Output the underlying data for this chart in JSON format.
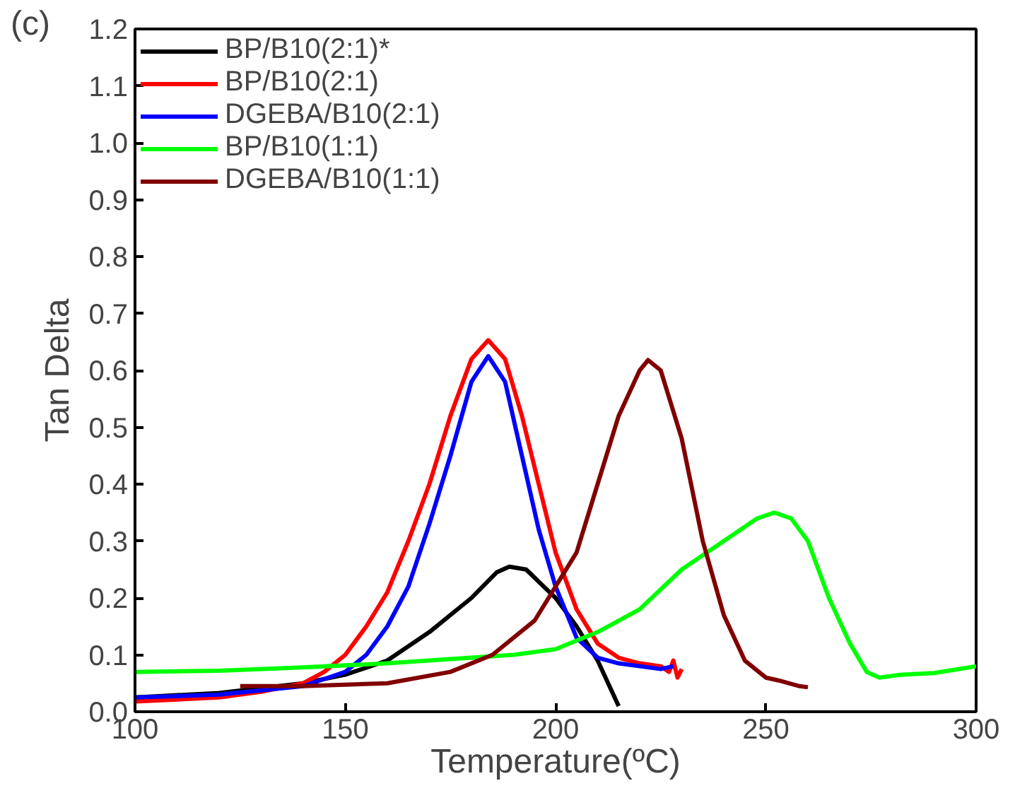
{
  "chart_data": {
    "type": "line",
    "xlabel": "Temperature(ºC)",
    "ylabel": "Tan Delta",
    "annotations": [
      "(c)"
    ],
    "xlim": [
      100,
      300
    ],
    "xticks": [
      100,
      150,
      200,
      250,
      300
    ],
    "ylim": [
      0,
      1.2
    ],
    "yticks": [
      {
        "value": 0,
        "label": "0.0"
      },
      0.1,
      0.2,
      0.3,
      0.4,
      0.5,
      0.6,
      0.7,
      0.8,
      0.9,
      {
        "value": 1,
        "label": "1.0"
      },
      1.1,
      1.2
    ],
    "grid": false,
    "legend": "top left",
    "line_style": "solid",
    "marker": "none",
    "series": [
      {
        "name": "BP/B10(2:1)*",
        "color": "#000000",
        "x": [
          100,
          120,
          140,
          150,
          160,
          170,
          180,
          186,
          189,
          193,
          200,
          205,
          210,
          215
        ],
        "values": [
          0.025,
          0.033,
          0.05,
          0.065,
          0.09,
          0.14,
          0.2,
          0.245,
          0.255,
          0.25,
          0.2,
          0.15,
          0.09,
          0.01
        ]
      },
      {
        "name": "BP/B10(2:1)",
        "color": "#ff0000",
        "x": [
          100,
          120,
          130,
          140,
          145,
          150,
          155,
          160,
          165,
          170,
          175,
          180,
          184,
          188,
          192,
          196,
          200,
          205,
          210,
          215,
          220,
          225,
          227,
          228,
          229,
          230
        ],
        "values": [
          0.018,
          0.025,
          0.035,
          0.05,
          0.07,
          0.1,
          0.15,
          0.21,
          0.3,
          0.4,
          0.52,
          0.62,
          0.653,
          0.62,
          0.52,
          0.4,
          0.28,
          0.18,
          0.12,
          0.095,
          0.085,
          0.08,
          0.07,
          0.09,
          0.06,
          0.075
        ]
      },
      {
        "name": "DGEBA/B10(2:1)",
        "color": "#0000ff",
        "x": [
          100,
          120,
          140,
          150,
          155,
          160,
          165,
          170,
          175,
          180,
          184,
          188,
          192,
          196,
          200,
          205,
          210,
          215,
          220,
          225,
          228
        ],
        "values": [
          0.025,
          0.03,
          0.045,
          0.07,
          0.1,
          0.15,
          0.22,
          0.33,
          0.45,
          0.58,
          0.625,
          0.58,
          0.45,
          0.32,
          0.22,
          0.13,
          0.095,
          0.085,
          0.08,
          0.075,
          0.08
        ]
      },
      {
        "name": "BP/B10(1:1)",
        "color": "#00ff00",
        "x": [
          100,
          120,
          140,
          160,
          180,
          190,
          200,
          210,
          220,
          230,
          240,
          248,
          252,
          256,
          260,
          265,
          270,
          274,
          277,
          282,
          290,
          300
        ],
        "values": [
          0.07,
          0.072,
          0.078,
          0.085,
          0.095,
          0.1,
          0.11,
          0.14,
          0.18,
          0.25,
          0.3,
          0.34,
          0.35,
          0.34,
          0.3,
          0.2,
          0.12,
          0.07,
          0.06,
          0.065,
          0.068,
          0.08
        ]
      },
      {
        "name": "DGEBA/B10(1:1)",
        "color": "#800000",
        "x": [
          125,
          140,
          160,
          175,
          185,
          195,
          205,
          210,
          215,
          220,
          222,
          225,
          230,
          235,
          240,
          245,
          250,
          253,
          258,
          260
        ],
        "values": [
          0.045,
          0.045,
          0.05,
          0.07,
          0.1,
          0.16,
          0.28,
          0.4,
          0.52,
          0.6,
          0.618,
          0.6,
          0.48,
          0.3,
          0.17,
          0.09,
          0.06,
          0.055,
          0.045,
          0.043
        ]
      }
    ]
  }
}
